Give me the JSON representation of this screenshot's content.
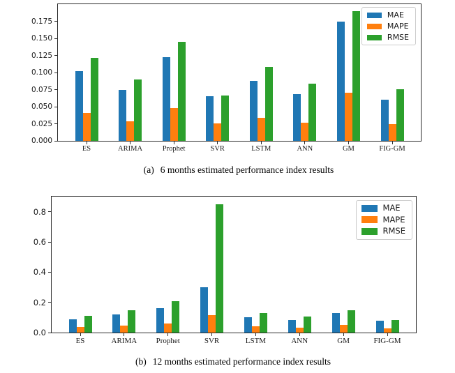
{
  "colors": {
    "mae": "#1f77b4",
    "mape": "#ff7f0e",
    "rmse": "#2ca02c",
    "spine": "#2b2b2b",
    "legend_border": "#cccccc",
    "background": "#ffffff"
  },
  "chart_data": [
    {
      "type": "bar",
      "caption_label": "(a)",
      "caption_text": "6 months estimated performance index results",
      "categories": [
        "ES",
        "ARIMA",
        "Prophet",
        "SVR",
        "LSTM",
        "ANN",
        "GM",
        "FIG-GM"
      ],
      "series": [
        {
          "name": "MAE",
          "color": "#1f77b4",
          "values": [
            0.102,
            0.075,
            0.122,
            0.065,
            0.088,
            0.068,
            0.175,
            0.06
          ]
        },
        {
          "name": "MAPE",
          "color": "#ff7f0e",
          "values": [
            0.041,
            0.029,
            0.048,
            0.026,
            0.034,
            0.027,
            0.07,
            0.025
          ]
        },
        {
          "name": "RMSE",
          "color": "#2ca02c",
          "values": [
            0.121,
            0.09,
            0.145,
            0.066,
            0.108,
            0.084,
            0.19,
            0.076
          ]
        }
      ],
      "ylim": [
        0,
        0.2
      ],
      "yticks": [
        {
          "value": 0.0,
          "label": "0.000"
        },
        {
          "value": 0.025,
          "label": "0.025"
        },
        {
          "value": 0.05,
          "label": "0.050"
        },
        {
          "value": 0.075,
          "label": "0.075"
        },
        {
          "value": 0.1,
          "label": "0.100"
        },
        {
          "value": 0.125,
          "label": "0.125"
        },
        {
          "value": 0.15,
          "label": "0.150"
        },
        {
          "value": 0.175,
          "label": "0.175"
        }
      ],
      "xlabel": "",
      "ylabel": "",
      "grid": false,
      "legend_position": "upper right",
      "legend_entries": [
        "MAE",
        "MAPE",
        "RMSE"
      ]
    },
    {
      "type": "bar",
      "caption_label": "(b)",
      "caption_text": "12 months estimated performance index results",
      "categories": [
        "ES",
        "ARIMA",
        "Prophet",
        "SVR",
        "LSTM",
        "ANN",
        "GM",
        "FIG-GM"
      ],
      "series": [
        {
          "name": "MAE",
          "color": "#1f77b4",
          "values": [
            0.09,
            0.12,
            0.163,
            0.3,
            0.103,
            0.085,
            0.13,
            0.08
          ]
        },
        {
          "name": "MAPE",
          "color": "#ff7f0e",
          "values": [
            0.035,
            0.045,
            0.06,
            0.115,
            0.04,
            0.032,
            0.05,
            0.03
          ]
        },
        {
          "name": "RMSE",
          "color": "#2ca02c",
          "values": [
            0.11,
            0.148,
            0.21,
            0.85,
            0.128,
            0.105,
            0.15,
            0.085
          ]
        }
      ],
      "ylim": [
        0,
        0.9
      ],
      "yticks": [
        {
          "value": 0.0,
          "label": "0.0"
        },
        {
          "value": 0.2,
          "label": "0.2"
        },
        {
          "value": 0.4,
          "label": "0.4"
        },
        {
          "value": 0.6,
          "label": "0.6"
        },
        {
          "value": 0.8,
          "label": "0.8"
        }
      ],
      "xlabel": "",
      "ylabel": "",
      "grid": false,
      "legend_position": "upper right",
      "legend_entries": [
        "MAE",
        "MAPE",
        "RMSE"
      ]
    }
  ]
}
